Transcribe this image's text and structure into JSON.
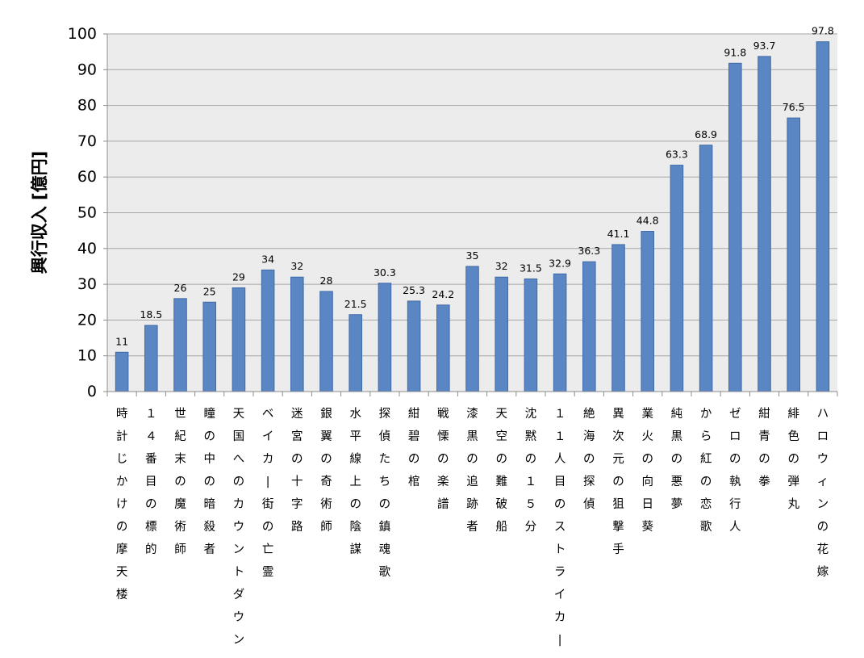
{
  "chart_data": {
    "type": "bar",
    "ylabel": "興行収入 [億円]",
    "ylim": [
      0,
      100
    ],
    "yticks": [
      "0",
      "10",
      "20",
      "30",
      "40",
      "50",
      "60",
      "70",
      "80",
      "90",
      "100"
    ],
    "grid": true,
    "categories": [
      "時計じかけの摩天楼",
      "１４番目の標的",
      "世紀末の魔術師",
      "瞳の中の暗殺者",
      "天国へのカウントダウン",
      "ベイカー街の亡霊",
      "迷宮の十字路",
      "銀翼の奇術師",
      "水平線上の陰謀",
      "探偵たちの鎮魂歌",
      "紺碧の棺",
      "戦慄の楽譜",
      "漆黒の追跡者",
      "天空の難破船",
      "沈黙の１５分",
      "１１人目のストライカー",
      "絶海の探偵",
      "異次元の狙撃手",
      "業火の向日葵",
      "純黒の悪夢",
      "から紅の恋歌",
      "ゼロの執行人",
      "紺青の拳",
      "緋色の弾丸",
      "ハロウィンの花嫁"
    ],
    "values": [
      11,
      18.5,
      26,
      25,
      29,
      34,
      32,
      28,
      21.5,
      30.3,
      25.3,
      24.2,
      35,
      32,
      31.5,
      32.9,
      36.3,
      41.1,
      44.8,
      63.3,
      68.9,
      91.8,
      93.7,
      76.5,
      97.8
    ],
    "data_labels": [
      "11",
      "18.5",
      "26",
      "25",
      "29",
      "34",
      "32",
      "28",
      "21.5",
      "30.3",
      "25.3",
      "24.2",
      "35",
      "32",
      "31.5",
      "32.9",
      "36.3",
      "41.1",
      "44.8",
      "63.3",
      "68.9",
      "91.8",
      "93.7",
      "76.5",
      "97.8"
    ],
    "colors": {
      "bar": "#5b86c4",
      "bar_edge": "#3f6aa8",
      "plot_bg": "#ececec",
      "grid": "#a6a6a6",
      "axis": "#8c8c8c"
    }
  }
}
